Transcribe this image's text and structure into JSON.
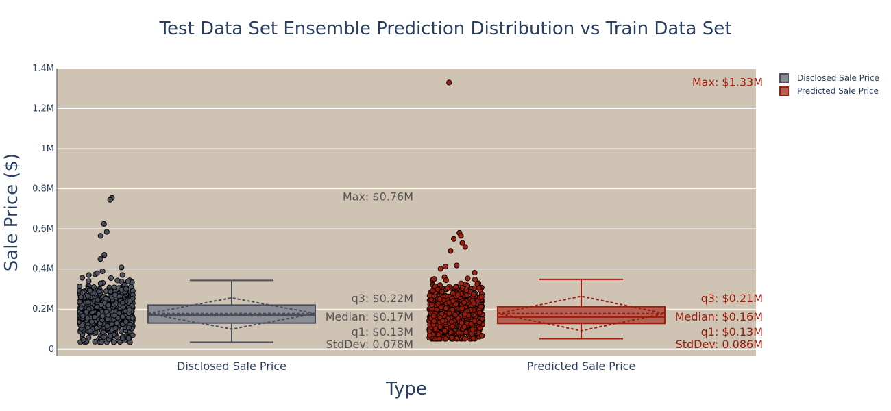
{
  "chart_data": {
    "type": "box",
    "title": "Test Data Set Ensemble Prediction Distribution vs Train Data Set",
    "xlabel": "Type",
    "ylabel": "Sale Price ($)",
    "ylim": [
      -35000,
      1400000
    ],
    "y_ticks": [
      {
        "value": 0,
        "label": "0"
      },
      {
        "value": 200000,
        "label": "0.2M"
      },
      {
        "value": 400000,
        "label": "0.4M"
      },
      {
        "value": 600000,
        "label": "0.6M"
      },
      {
        "value": 800000,
        "label": "0.8M"
      },
      {
        "value": 1000000,
        "label": "1M"
      },
      {
        "value": 1200000,
        "label": "1.2M"
      },
      {
        "value": 1400000,
        "label": "1.4M"
      }
    ],
    "grid": true,
    "legend_position": "top-right",
    "categories": [
      "Disclosed Sale Price",
      "Predicted Sale Price"
    ],
    "series": [
      {
        "name": "Disclosed Sale Price",
        "color": "#4b4f5c",
        "fill": "#8b8d95",
        "box": {
          "lowerfence": 35000,
          "q1": 130000,
          "median": 170000,
          "mean": 178000,
          "q3": 220000,
          "upperfence": 343000,
          "sd": 78000,
          "max": 760000
        },
        "outliers": [
          755000,
          745000,
          625000,
          585000,
          565000,
          470000,
          450000
        ],
        "annotations": [
          "Max: $0.76M",
          "q3: $0.22M",
          "Median: $0.17M",
          "q1: $0.13M",
          "StdDev: 0.078M"
        ]
      },
      {
        "name": "Predicted Sale Price",
        "color": "#9b1c0c",
        "fill": "#b45f51",
        "box": {
          "lowerfence": 52000,
          "q1": 128000,
          "median": 160000,
          "mean": 178000,
          "q3": 212000,
          "upperfence": 348000,
          "sd": 86000,
          "max": 1330000
        },
        "outliers": [
          1330000,
          580000,
          565000,
          550000,
          530000,
          510000,
          490000
        ],
        "annotations": [
          "Max: $1.33M",
          "q3: $0.21M",
          "Median: $0.16M",
          "q1: $0.13M",
          "StdDev: 0.086M"
        ]
      }
    ],
    "colors": {
      "plot_bg": "#cfc3b3",
      "grid": "#ffffff",
      "text": "#2a3f5f"
    }
  }
}
